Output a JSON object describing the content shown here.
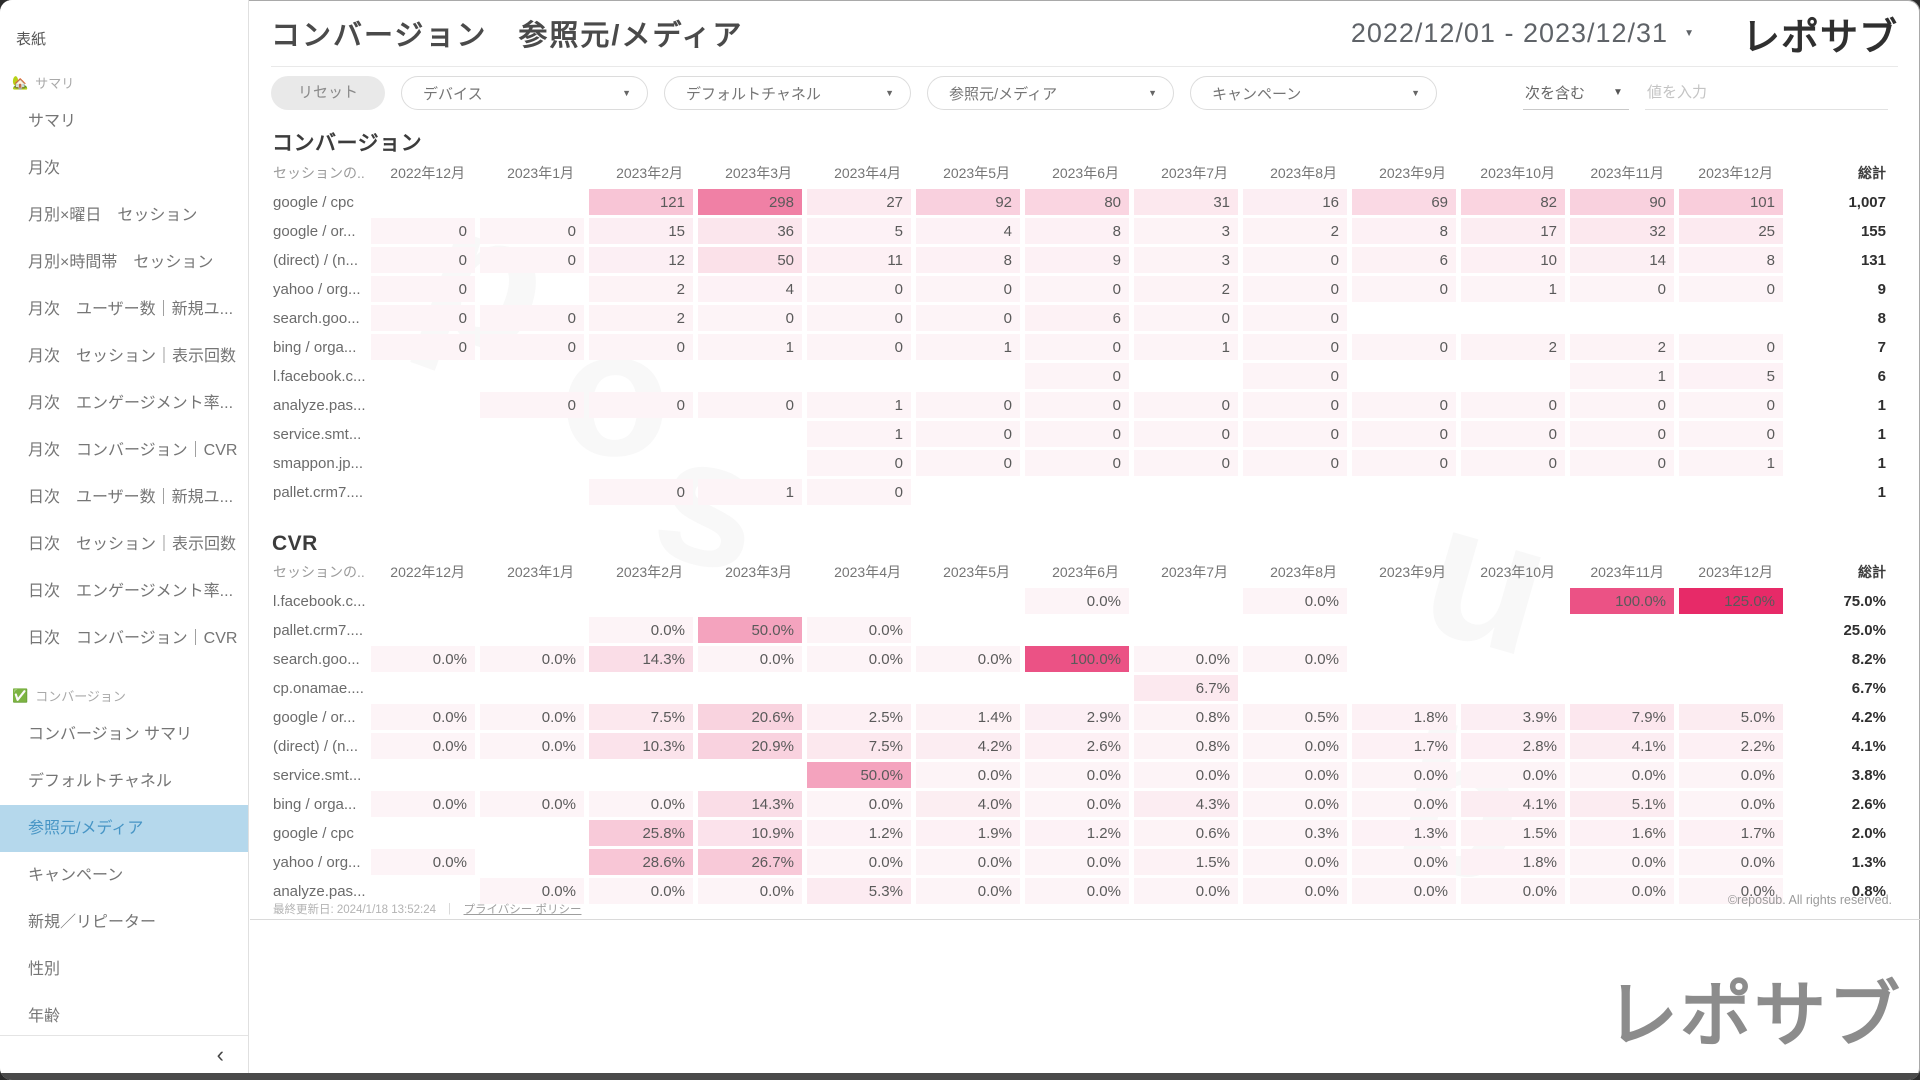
{
  "sidebar": {
    "top_item": "表紙",
    "collapse_icon": "‹",
    "sections": [
      {
        "icon": "🏡",
        "icon_name": "home-icon",
        "label": "サマリ",
        "items": [
          "サマリ",
          "月次",
          "月別×曜日　セッション",
          "月別×時間帯　セッション",
          "月次　ユーザー数｜新規ユ...",
          "月次　セッション｜表示回数",
          "月次　エンゲージメント率...",
          "月次　コンバージョン｜CVR",
          "日次　ユーザー数｜新規ユ...",
          "日次　セッション｜表示回数",
          "日次　エンゲージメント率...",
          "日次　コンバージョン｜CVR"
        ]
      },
      {
        "icon": "✅",
        "icon_name": "checkbox-icon",
        "label": "コンバージョン",
        "items": [
          "コンバージョン サマリ",
          "デフォルトチャネル",
          "参照元/メディア",
          "キャンペーン",
          "新規／リピーター",
          "性別",
          "年齢"
        ],
        "active_item": "参照元/メディア"
      }
    ]
  },
  "header": {
    "title": "コンバージョン　参照元/メディア",
    "date_range": "2022/12/01 - 2023/12/31",
    "logo": "レポサブ"
  },
  "filters": {
    "reset_label": "リセット",
    "dropdowns": [
      "デバイス",
      "デフォルトチャネル",
      "参照元/メディア",
      "キャンペーン"
    ],
    "condition_label": "次を含む",
    "value_placeholder": "値を入力"
  },
  "chart_data": [
    {
      "type": "heatmap",
      "title": "コンバージョン",
      "row_header": "セッションの...",
      "total_label": "総計",
      "value_format": "int",
      "color_scale_max": 520,
      "accent_color": "#e72a68",
      "columns": [
        "2022年12月",
        "2023年1月",
        "2023年2月",
        "2023年3月",
        "2023年4月",
        "2023年5月",
        "2023年6月",
        "2023年7月",
        "2023年8月",
        "2023年9月",
        "2023年10月",
        "2023年11月",
        "2023年12月"
      ],
      "rows": [
        {
          "label": "google / cpc",
          "values": [
            null,
            null,
            121,
            298,
            27,
            92,
            80,
            31,
            16,
            69,
            82,
            90,
            101
          ],
          "total": "1,007"
        },
        {
          "label": "google / or...",
          "values": [
            0,
            0,
            15,
            36,
            5,
            4,
            8,
            3,
            2,
            8,
            17,
            32,
            25
          ],
          "total": "155"
        },
        {
          "label": "(direct) / (n...",
          "values": [
            0,
            0,
            12,
            50,
            11,
            8,
            9,
            3,
            0,
            6,
            10,
            14,
            8
          ],
          "total": "131"
        },
        {
          "label": "yahoo / org...",
          "values": [
            0,
            null,
            2,
            4,
            0,
            0,
            0,
            2,
            0,
            0,
            1,
            0,
            0
          ],
          "total": "9"
        },
        {
          "label": "search.goo...",
          "values": [
            0,
            0,
            2,
            0,
            0,
            0,
            6,
            0,
            0,
            null,
            null,
            null,
            null
          ],
          "total": "8"
        },
        {
          "label": "bing / orga...",
          "values": [
            0,
            0,
            0,
            1,
            0,
            1,
            0,
            1,
            0,
            0,
            2,
            2,
            0
          ],
          "total": "7"
        },
        {
          "label": "l.facebook.c...",
          "values": [
            null,
            null,
            null,
            null,
            null,
            null,
            0,
            null,
            0,
            null,
            null,
            1,
            5
          ],
          "total": "6"
        },
        {
          "label": "analyze.pas...",
          "values": [
            null,
            0,
            0,
            0,
            1,
            0,
            0,
            0,
            0,
            0,
            0,
            0,
            0
          ],
          "total": "1"
        },
        {
          "label": "service.smt...",
          "values": [
            null,
            null,
            null,
            null,
            1,
            0,
            0,
            0,
            0,
            0,
            0,
            0,
            0
          ],
          "total": "1"
        },
        {
          "label": "smappon.jp...",
          "values": [
            null,
            null,
            null,
            null,
            0,
            0,
            0,
            0,
            0,
            0,
            0,
            0,
            1
          ],
          "total": "1"
        },
        {
          "label": "pallet.crm7....",
          "values": [
            null,
            null,
            0,
            1,
            0,
            null,
            null,
            null,
            null,
            null,
            null,
            null,
            null
          ],
          "total": "1"
        }
      ]
    },
    {
      "type": "heatmap",
      "title": "CVR",
      "row_header": "セッションの...",
      "total_label": "総計",
      "value_format": "pct",
      "color_scale_max": 125,
      "accent_color": "#e72a68",
      "columns": [
        "2022年12月",
        "2023年1月",
        "2023年2月",
        "2023年3月",
        "2023年4月",
        "2023年5月",
        "2023年6月",
        "2023年7月",
        "2023年8月",
        "2023年9月",
        "2023年10月",
        "2023年11月",
        "2023年12月"
      ],
      "rows": [
        {
          "label": "l.facebook.c...",
          "values": [
            null,
            null,
            null,
            null,
            null,
            null,
            0,
            null,
            0,
            null,
            null,
            100,
            125
          ],
          "total": "75.0%"
        },
        {
          "label": "pallet.crm7....",
          "values": [
            null,
            null,
            0,
            50,
            0,
            null,
            null,
            null,
            null,
            null,
            null,
            null,
            null
          ],
          "total": "25.0%"
        },
        {
          "label": "search.goo...",
          "values": [
            0,
            0,
            14.3,
            0,
            0,
            0,
            100,
            0,
            0,
            null,
            null,
            null,
            null
          ],
          "total": "8.2%"
        },
        {
          "label": "cp.onamae....",
          "values": [
            null,
            null,
            null,
            null,
            null,
            null,
            null,
            6.7,
            null,
            null,
            null,
            null,
            null
          ],
          "total": "6.7%"
        },
        {
          "label": "google / or...",
          "values": [
            0,
            0,
            7.5,
            20.6,
            2.5,
            1.4,
            2.9,
            0.8,
            0.5,
            1.8,
            3.9,
            7.9,
            5.0
          ],
          "total": "4.2%"
        },
        {
          "label": "(direct) / (n...",
          "values": [
            0,
            0,
            10.3,
            20.9,
            7.5,
            4.2,
            2.6,
            0.8,
            0.0,
            1.7,
            2.8,
            4.1,
            2.2
          ],
          "total": "4.1%"
        },
        {
          "label": "service.smt...",
          "values": [
            null,
            null,
            null,
            null,
            50,
            0,
            0,
            0,
            0,
            0,
            0,
            0,
            0
          ],
          "total": "3.8%"
        },
        {
          "label": "bing / orga...",
          "values": [
            0,
            0,
            0,
            14.3,
            0,
            4.0,
            0,
            4.3,
            0,
            0,
            4.1,
            5.1,
            0
          ],
          "total": "2.6%"
        },
        {
          "label": "google / cpc",
          "values": [
            null,
            null,
            25.8,
            10.9,
            1.2,
            1.9,
            1.2,
            0.6,
            0.3,
            1.3,
            1.5,
            1.6,
            1.7
          ],
          "total": "2.0%"
        },
        {
          "label": "yahoo / org...",
          "values": [
            0,
            null,
            28.6,
            26.7,
            0,
            0,
            0,
            1.5,
            0,
            0,
            1.8,
            0,
            0
          ],
          "total": "1.3%"
        },
        {
          "label": "analyze.pas...",
          "values": [
            null,
            0,
            0,
            0,
            5.3,
            0,
            0,
            0,
            0,
            0,
            0,
            0,
            0
          ],
          "total": "0.8%"
        }
      ]
    }
  ],
  "footer": {
    "last_updated": "最終更新日: 2024/1/18 13:52:24",
    "separator": "｜",
    "privacy_link": "プライバシー ポリシー",
    "copyright": "©reposub. All rights reserved.",
    "bottom_logo": "レポサブ",
    "watermark": "rposub"
  }
}
